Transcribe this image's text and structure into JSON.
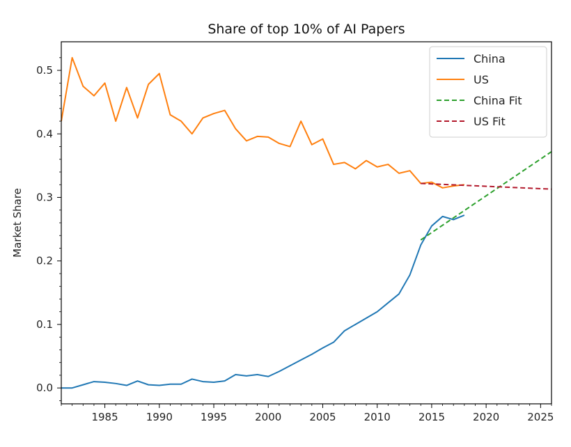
{
  "chart_data": {
    "type": "line",
    "title": "Share of top 10% of AI Papers",
    "xlabel": "",
    "ylabel": "Market Share",
    "xlim": [
      1981,
      2026
    ],
    "ylim": [
      -0.025,
      0.545
    ],
    "xticks": [
      1985,
      1990,
      1995,
      2000,
      2005,
      2010,
      2015,
      2020,
      2025
    ],
    "yticks": [
      0.0,
      0.1,
      0.2,
      0.3,
      0.4,
      0.5
    ],
    "ytick_labels": [
      "0.0",
      "0.1",
      "0.2",
      "0.3",
      "0.4",
      "0.5"
    ],
    "legend_position": "top-right",
    "series": [
      {
        "name": "China",
        "color": "#1f77b4",
        "style": "solid",
        "x": [
          1981,
          1982,
          1983,
          1984,
          1985,
          1986,
          1987,
          1988,
          1989,
          1990,
          1991,
          1992,
          1993,
          1994,
          1995,
          1996,
          1997,
          1998,
          1999,
          2000,
          2001,
          2002,
          2003,
          2004,
          2005,
          2006,
          2007,
          2008,
          2009,
          2010,
          2011,
          2012,
          2013,
          2014,
          2015,
          2016,
          2017,
          2018
        ],
        "y": [
          0.0,
          0.0,
          0.005,
          0.01,
          0.009,
          0.007,
          0.004,
          0.011,
          0.005,
          0.004,
          0.006,
          0.006,
          0.014,
          0.01,
          0.009,
          0.011,
          0.021,
          0.019,
          0.021,
          0.018,
          0.026,
          0.035,
          0.044,
          0.053,
          0.063,
          0.072,
          0.09,
          0.1,
          0.11,
          0.12,
          0.134,
          0.148,
          0.178,
          0.225,
          0.255,
          0.27,
          0.265,
          0.272
        ]
      },
      {
        "name": "US",
        "color": "#ff7f0e",
        "style": "solid",
        "x": [
          1981,
          1982,
          1983,
          1984,
          1985,
          1986,
          1987,
          1988,
          1989,
          1990,
          1991,
          1992,
          1993,
          1994,
          1995,
          1996,
          1997,
          1998,
          1999,
          2000,
          2001,
          2002,
          2003,
          2004,
          2005,
          2006,
          2007,
          2008,
          2009,
          2010,
          2011,
          2012,
          2013,
          2014,
          2015,
          2016,
          2017,
          2018
        ],
        "y": [
          0.42,
          0.52,
          0.475,
          0.46,
          0.48,
          0.42,
          0.473,
          0.425,
          0.478,
          0.495,
          0.43,
          0.42,
          0.4,
          0.425,
          0.432,
          0.437,
          0.408,
          0.389,
          0.396,
          0.395,
          0.385,
          0.38,
          0.42,
          0.383,
          0.392,
          0.352,
          0.355,
          0.345,
          0.358,
          0.348,
          0.352,
          0.338,
          0.342,
          0.322,
          0.324,
          0.315,
          0.318,
          0.32
        ]
      },
      {
        "name": "China Fit",
        "color": "#2ca02c",
        "style": "dashed",
        "x": [
          2014,
          2026
        ],
        "y": [
          0.233,
          0.372
        ]
      },
      {
        "name": "US Fit",
        "color": "#b2182b",
        "style": "dashed",
        "x": [
          2014,
          2026
        ],
        "y": [
          0.322,
          0.313
        ]
      }
    ]
  }
}
